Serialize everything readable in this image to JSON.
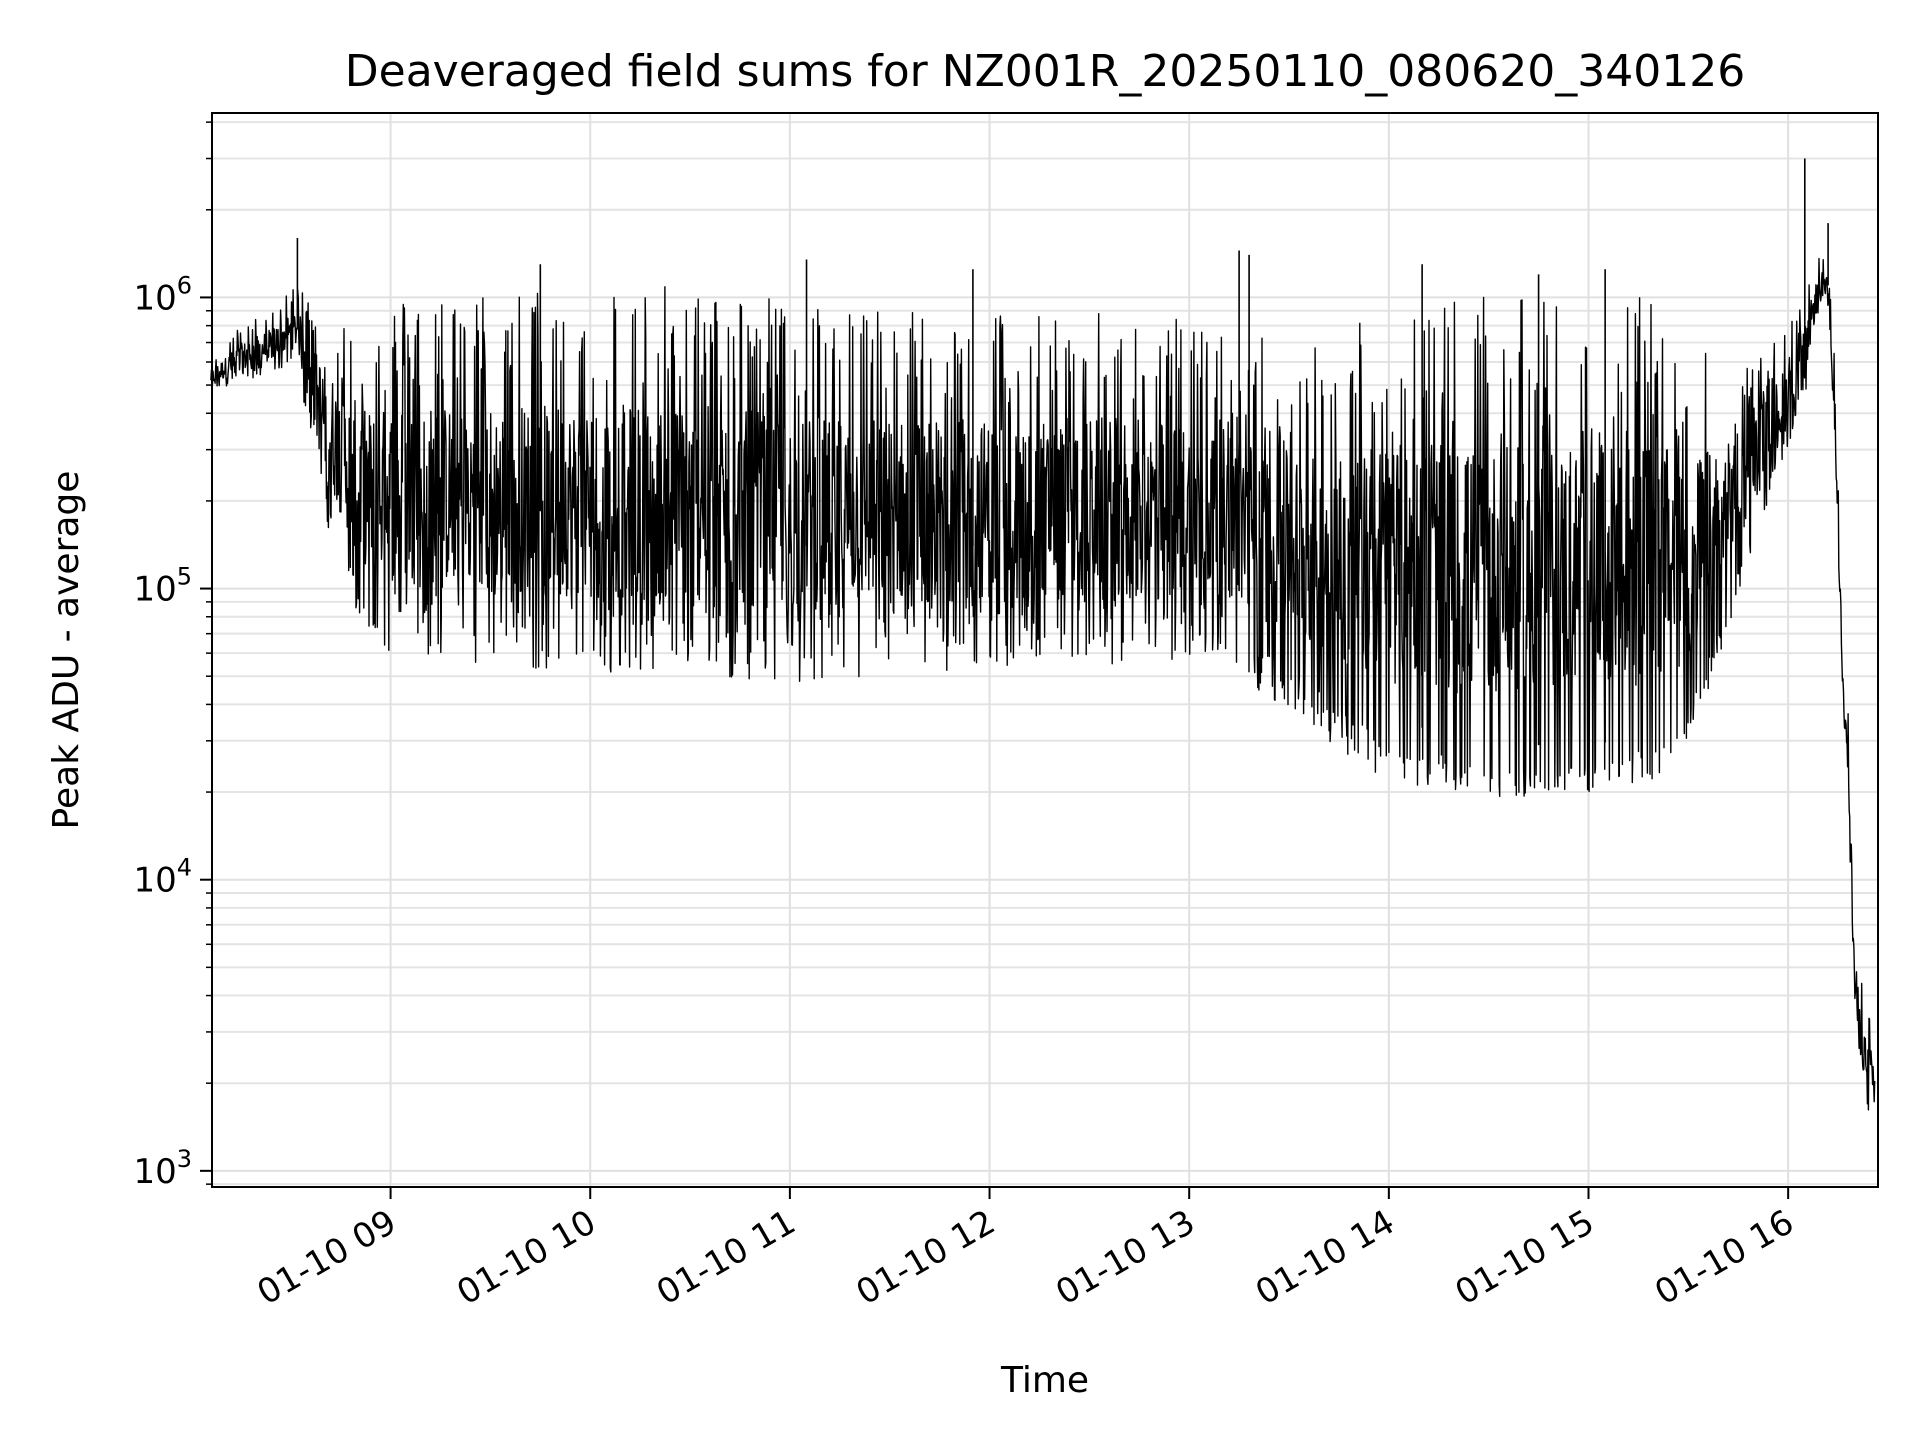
{
  "chart_data": {
    "type": "line",
    "title": "Deaveraged field sums for NZ001R_20250110_080620_340126",
    "xlabel": "Time",
    "ylabel": "Peak ADU - average",
    "yscale": "log",
    "ylim": [
      880,
      4300000
    ],
    "xlim": [
      "2025-01-10 08:06:20",
      "2025-01-10 16:27:00"
    ],
    "x_ticks": [
      "01-10 09",
      "01-10 10",
      "01-10 11",
      "01-10 12",
      "01-10 13",
      "01-10 14",
      "01-10 15",
      "01-10 16"
    ],
    "y_ticks": [
      1000,
      10000,
      100000,
      1000000
    ],
    "y_tick_exponents": [
      "3",
      "4",
      "5",
      "6"
    ],
    "y_tick_base": "10",
    "grid": true,
    "line_color": "#000000",
    "series": [
      {
        "x": [
          "2025-01-10 08:06",
          "2025-01-10 08:15",
          "2025-01-10 08:24",
          "2025-01-10 08:32",
          "2025-01-10 08:36",
          "2025-01-10 08:40",
          "2025-01-10 08:45",
          "2025-01-10 08:50",
          "2025-01-10 08:55",
          "2025-01-10 09:00",
          "2025-01-10 09:30",
          "2025-01-10 10:00",
          "2025-01-10 10:30",
          "2025-01-10 11:00",
          "2025-01-10 11:30",
          "2025-01-10 12:00",
          "2025-01-10 12:30",
          "2025-01-10 13:00",
          "2025-01-10 13:10",
          "2025-01-10 13:20",
          "2025-01-10 13:35",
          "2025-01-10 13:50",
          "2025-01-10 14:00",
          "2025-01-10 14:30",
          "2025-01-10 15:00",
          "2025-01-10 15:20",
          "2025-01-10 15:30",
          "2025-01-10 15:40",
          "2025-01-10 15:50",
          "2025-01-10 16:00",
          "2025-01-10 16:05",
          "2025-01-10 16:08",
          "2025-01-10 16:10",
          "2025-01-10 16:12",
          "2025-01-10 16:14",
          "2025-01-10 16:16",
          "2025-01-10 16:18",
          "2025-01-10 16:20",
          "2025-01-10 16:22",
          "2025-01-10 16:24",
          "2025-01-10 16:26"
        ],
        "y": [
          520000,
          650000,
          700000,
          850000,
          550000,
          350000,
          200000,
          120000,
          90000,
          150000,
          200000,
          170000,
          150000,
          140000,
          140000,
          140000,
          150000,
          150000,
          120000,
          80000,
          65000,
          45000,
          35000,
          30000,
          28000,
          35000,
          45000,
          90000,
          200000,
          400000,
          600000,
          1000000,
          1200000,
          1100000,
          500000,
          80000,
          30000,
          5000,
          3500,
          2500,
          2300
        ],
        "envelope_upper": [
          600000,
          800000,
          900000,
          1100000,
          1000000,
          1000000,
          900000,
          900000,
          900000,
          1000000,
          1050000,
          1100000,
          1100000,
          1000000,
          950000,
          900000,
          900000,
          850000,
          800000,
          750000,
          700000,
          900000,
          1000000,
          1000000,
          1000000,
          1000000,
          800000,
          600000,
          600000,
          800000,
          1000000,
          1300000,
          1400000,
          1300000,
          600000,
          100000,
          40000,
          7000,
          4500,
          3500,
          3000
        ],
        "envelope_lower": [
          480000,
          500000,
          550000,
          600000,
          300000,
          180000,
          120000,
          80000,
          65000,
          60000,
          55000,
          50000,
          48000,
          45000,
          48000,
          52000,
          55000,
          55000,
          55000,
          45000,
          35000,
          25000,
          22000,
          19000,
          20000,
          22000,
          28000,
          60000,
          150000,
          300000,
          450000,
          750000,
          900000,
          900000,
          300000,
          50000,
          20000,
          3000,
          2000,
          1600,
          1500
        ]
      }
    ],
    "spikes": [
      {
        "x": "2025-01-10 08:32",
        "y": 1600000
      },
      {
        "x": "2025-01-10 09:45",
        "y": 1300000
      },
      {
        "x": "2025-01-10 11:05",
        "y": 1350000
      },
      {
        "x": "2025-01-10 11:55",
        "y": 1250000
      },
      {
        "x": "2025-01-10 13:15",
        "y": 1450000
      },
      {
        "x": "2025-01-10 13:18",
        "y": 1400000
      },
      {
        "x": "2025-01-10 14:10",
        "y": 1300000
      },
      {
        "x": "2025-01-10 14:45",
        "y": 1200000
      },
      {
        "x": "2025-01-10 15:05",
        "y": 1250000
      },
      {
        "x": "2025-01-10 16:05",
        "y": 3000000
      },
      {
        "x": "2025-01-10 16:12",
        "y": 1800000
      }
    ]
  }
}
